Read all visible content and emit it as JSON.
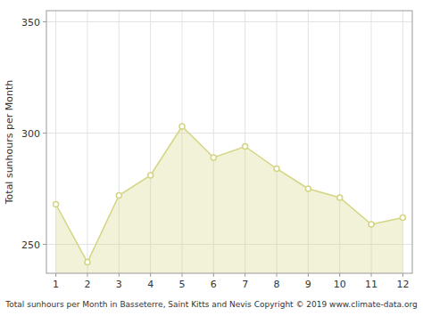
{
  "chart_data": {
    "type": "area",
    "x": [
      1,
      2,
      3,
      4,
      5,
      6,
      7,
      8,
      9,
      10,
      11,
      12
    ],
    "values": [
      268,
      242,
      272,
      281,
      303,
      289,
      294,
      284,
      275,
      271,
      259,
      262
    ],
    "color": "#d4d482",
    "marker": "circle",
    "xlabel": "Total sunhours per Month in Basseterre, Saint Kitts and Nevis Copyright © 2019 www.climate-data.org",
    "ylabel": "Total sunhours per Month",
    "xlim": [
      0.7,
      12.3
    ],
    "xticks": [
      1,
      2,
      3,
      4,
      5,
      6,
      7,
      8,
      9,
      10,
      11,
      12
    ],
    "ylim": [
      237,
      355
    ],
    "yticks": [
      250,
      300,
      350
    ],
    "grid": true
  }
}
